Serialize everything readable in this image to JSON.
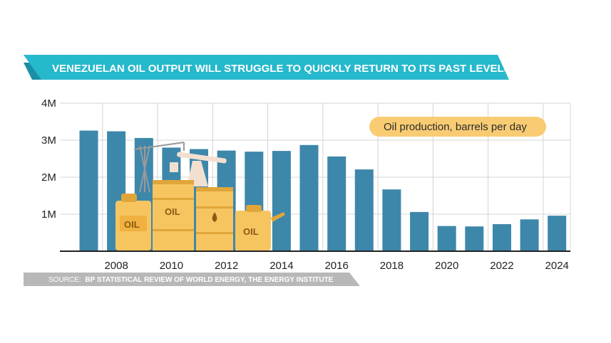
{
  "chart_data": {
    "type": "bar",
    "title": "VENEZUELAN OIL OUTPUT WILL STRUGGLE TO QUICKLY RETURN TO ITS PAST LEVELS",
    "legend": "Oil production, barrels per day",
    "source_prefix": "SOURCE:",
    "source_text": "BP STATISTICAL REVIEW OF WORLD ENERGY, THE ENERGY INSTITUTE",
    "categories": [
      2007,
      2008,
      2009,
      2010,
      2011,
      2012,
      2013,
      2014,
      2015,
      2016,
      2017,
      2018,
      2019,
      2020,
      2021,
      2022,
      2023,
      2024
    ],
    "values": [
      3260000,
      3240000,
      3060000,
      2800000,
      2760000,
      2720000,
      2690000,
      2710000,
      2870000,
      2560000,
      2210000,
      1670000,
      1060000,
      680000,
      670000,
      730000,
      860000,
      960000
    ],
    "x_tick_labels": [
      "2008",
      "2010",
      "2012",
      "2014",
      "2016",
      "2018",
      "2020",
      "2022",
      "2024"
    ],
    "y_tick_labels": [
      "1M",
      "2M",
      "3M",
      "4M"
    ],
    "y_ticks": [
      1000000,
      2000000,
      3000000,
      4000000
    ],
    "ylim": [
      0,
      4000000
    ],
    "grid": true,
    "colors": {
      "bar": "#3d87ab",
      "banner": "#26b8cc",
      "banner_dark": "#1a8fa6",
      "legend_bg": "#f9cc73",
      "source_bg": "#b8b8b8",
      "grid": "#d4d4d4",
      "oil": "#f7c560",
      "oil_dark": "#e0a63a"
    }
  },
  "illustration": {
    "label_1": "OIL",
    "label_2": "OIL",
    "label_3": "OIL"
  }
}
